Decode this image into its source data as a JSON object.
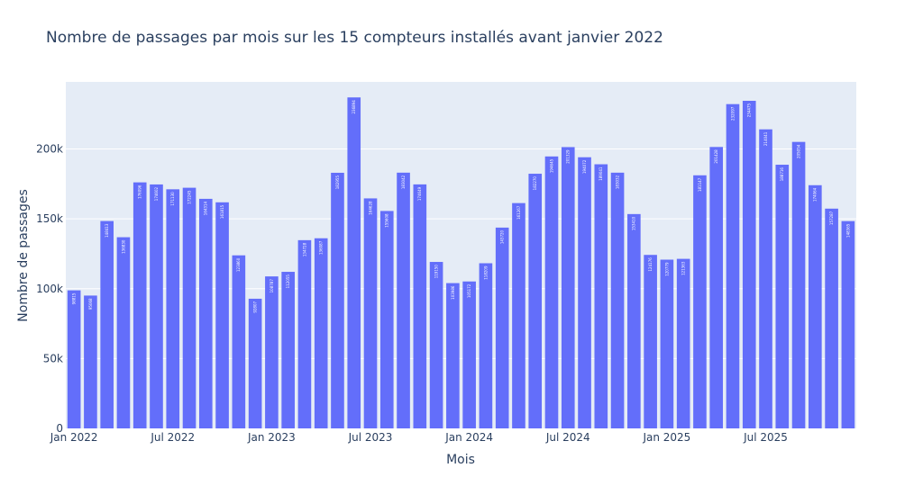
{
  "chart_data": {
    "type": "bar",
    "title": "Nombre de passages par mois sur les 15 compteurs installés avant janvier 2022",
    "xlabel": "Mois",
    "ylabel": "Nombre de passages",
    "ylim": [
      0,
      248000
    ],
    "grid": true,
    "legend": "none",
    "bar_color": "#636efa",
    "plot_bg": "#e5ecf6",
    "y_ticks": [
      {
        "value": 0,
        "label": "0"
      },
      {
        "value": 50000,
        "label": "50k"
      },
      {
        "value": 100000,
        "label": "100k"
      },
      {
        "value": 150000,
        "label": "150k"
      },
      {
        "value": 200000,
        "label": "200k"
      }
    ],
    "x_ticks": [
      {
        "index": 0,
        "label": "Jan 2022"
      },
      {
        "index": 6,
        "label": "Jul 2022"
      },
      {
        "index": 12,
        "label": "Jan 2023"
      },
      {
        "index": 18,
        "label": "Jul 2023"
      },
      {
        "index": 24,
        "label": "Jan 2024"
      },
      {
        "index": 30,
        "label": "Jul 2024"
      },
      {
        "index": 36,
        "label": "Jan 2025"
      },
      {
        "index": 42,
        "label": "Jul 2025"
      }
    ],
    "categories": [
      "2022-01",
      "2022-02",
      "2022-03",
      "2022-04",
      "2022-05",
      "2022-06",
      "2022-07",
      "2022-08",
      "2022-09",
      "2022-10",
      "2022-11",
      "2022-12",
      "2023-01",
      "2023-02",
      "2023-03",
      "2023-04",
      "2023-05",
      "2023-06",
      "2023-07",
      "2023-08",
      "2023-09",
      "2023-10",
      "2023-11",
      "2023-12",
      "2024-01",
      "2024-02",
      "2024-03",
      "2024-04",
      "2024-05",
      "2024-06",
      "2024-07",
      "2024-08",
      "2024-09",
      "2024-10",
      "2024-11",
      "2024-12",
      "2025-01",
      "2025-02",
      "2025-03",
      "2025-04",
      "2025-05",
      "2025-06",
      "2025-07",
      "2025-08",
      "2025-09",
      "2025-10",
      "2025-11",
      "2025-12"
    ],
    "values": [
      98815,
      95068,
      148413,
      136830,
      176096,
      174602,
      171130,
      172245,
      164314,
      161815,
      123860,
      92807,
      108787,
      112055,
      134728,
      136087,
      182955,
      236894,
      164628,
      155608,
      183042,
      174649,
      119150,
      103986,
      105172,
      118209,
      143720,
      161267,
      182270,
      194645,
      201329,
      194072,
      189041,
      183032,
      153410,
      124176,
      120779,
      121363,
      181147,
      201428,
      232097,
      234475,
      214041,
      188716,
      205054,
      174064,
      157287,
      148365
    ]
  }
}
